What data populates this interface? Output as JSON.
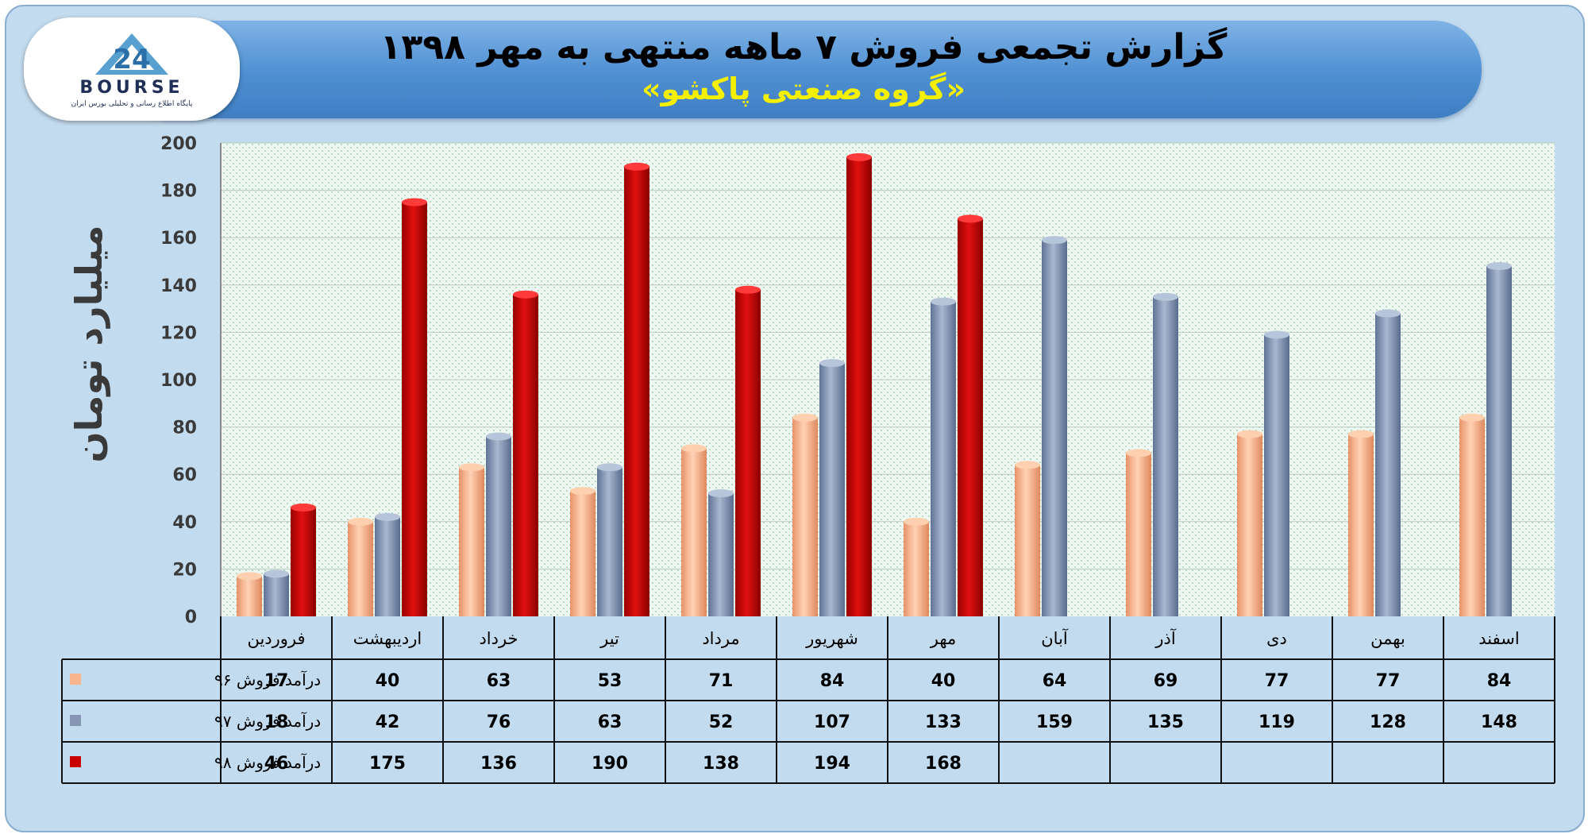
{
  "header": {
    "title": "گزارش تجمعی فروش ۷ ماهه منتهی به مهر ۱۳۹۸",
    "subtitle": "«گروه صنعتی پاکشو»"
  },
  "logo": {
    "text": "BOURSE",
    "caption": "پایگاه اطلاع رسانی و تحلیلی بورس ایران"
  },
  "colors": {
    "series_96": "#f8b48a",
    "series_97": "#8597b3",
    "series_98": "#c80000",
    "plot_bg": "#eef7f1",
    "frame_bg": "#c3dbef"
  },
  "chart_data": {
    "type": "bar",
    "ylabel": "میلیارد تومان",
    "ylim": [
      0,
      200
    ],
    "yticks": [
      0,
      20,
      40,
      60,
      80,
      100,
      120,
      140,
      160,
      180,
      200
    ],
    "grid": true,
    "legend": "data-table-left",
    "categories": [
      "فروردین",
      "اردیبهشت",
      "خرداد",
      "تیر",
      "مرداد",
      "شهریور",
      "مهر",
      "آبان",
      "آذر",
      "دی",
      "بهمن",
      "اسفند"
    ],
    "series": [
      {
        "name": "درآمد فروش ۹۶",
        "values": [
          17,
          40,
          63,
          53,
          71,
          84,
          40,
          64,
          69,
          77,
          77,
          84
        ]
      },
      {
        "name": "درآمد فروش ۹۷",
        "values": [
          18,
          42,
          76,
          63,
          52,
          107,
          133,
          159,
          135,
          119,
          128,
          148
        ]
      },
      {
        "name": "درآمد فروش ۹۸",
        "values": [
          46,
          175,
          136,
          190,
          138,
          194,
          168,
          null,
          null,
          null,
          null,
          null
        ]
      }
    ]
  }
}
